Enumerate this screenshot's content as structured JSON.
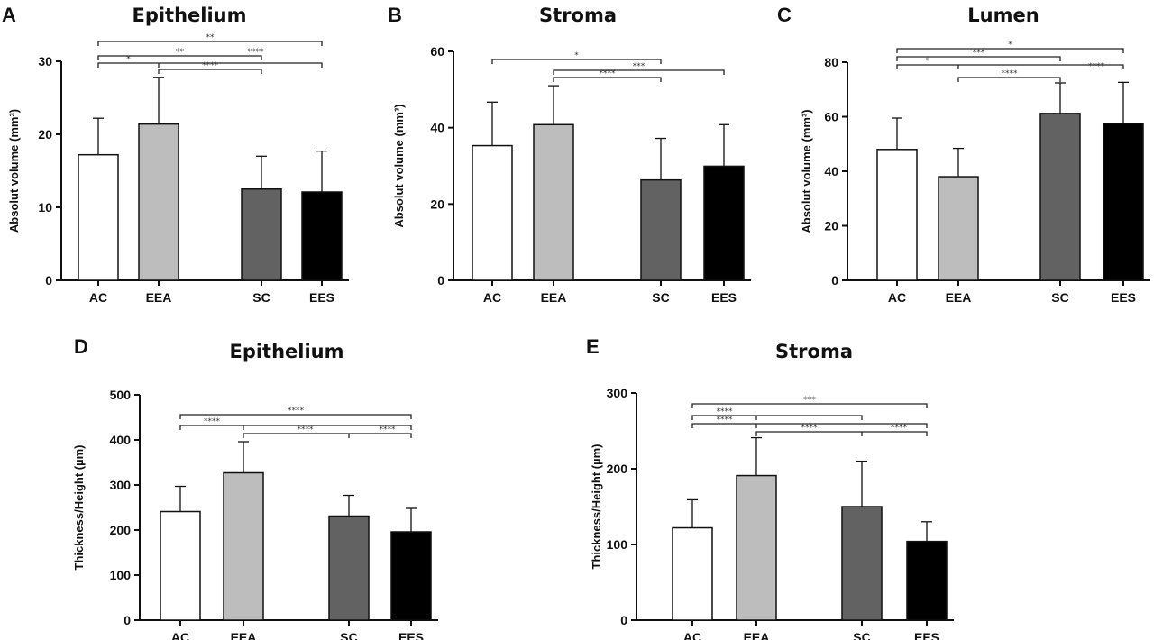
{
  "chart_data": [
    {
      "panel": "A",
      "type": "bar",
      "title": "Epithelium",
      "ylabel": "Absolut volume (mm³)",
      "ylim": [
        0,
        30
      ],
      "yticks": [
        0,
        10,
        20,
        30
      ],
      "categories": [
        "AC",
        "EEA",
        "SC",
        "EES"
      ],
      "values": [
        17.2,
        21.4,
        12.5,
        12.1
      ],
      "errors": [
        5.0,
        6.4,
        4.5,
        5.6
      ],
      "colors": [
        "#ffffff",
        "#bdbdbd",
        "#626262",
        "#000000"
      ],
      "significance": [
        {
          "from": 0,
          "to": 3,
          "label": "**"
        },
        {
          "from": 0,
          "to": 2,
          "label": "**"
        },
        {
          "from": 0,
          "to": 3,
          "label": "*"
        },
        {
          "from": 1,
          "to": 2,
          "label": "****"
        },
        {
          "from": 1,
          "to": 3,
          "label": "****"
        }
      ]
    },
    {
      "panel": "B",
      "type": "bar",
      "title": "Stroma",
      "ylabel": "Absolut volume (mm³)",
      "ylim": [
        0,
        60
      ],
      "yticks": [
        0,
        20,
        40,
        60
      ],
      "categories": [
        "AC",
        "EEA",
        "SC",
        "EES"
      ],
      "values": [
        35.3,
        40.8,
        26.3,
        29.9
      ],
      "errors": [
        11.4,
        10.2,
        10.9,
        10.9
      ],
      "colors": [
        "#ffffff",
        "#bdbdbd",
        "#626262",
        "#000000"
      ],
      "significance": [
        {
          "from": 0,
          "to": 2,
          "label": "*"
        },
        {
          "from": 1,
          "to": 3,
          "label": "***"
        },
        {
          "from": 1,
          "to": 2,
          "label": "****"
        }
      ]
    },
    {
      "panel": "C",
      "type": "bar",
      "title": "Lumen",
      "ylabel": "Absolut volume (mm³)",
      "ylim": [
        0,
        80
      ],
      "yticks": [
        0,
        20,
        40,
        60,
        80
      ],
      "categories": [
        "AC",
        "EEA",
        "SC",
        "EES"
      ],
      "values": [
        48.0,
        38.0,
        61.2,
        57.6
      ],
      "errors": [
        11.5,
        10.4,
        11.2,
        15.0
      ],
      "colors": [
        "#ffffff",
        "#bdbdbd",
        "#626262",
        "#000000"
      ],
      "significance": [
        {
          "from": 0,
          "to": 3,
          "label": "*"
        },
        {
          "from": 0,
          "to": 2,
          "label": "***"
        },
        {
          "from": 0,
          "to": 3,
          "label": "*"
        },
        {
          "from": 1,
          "to": 3,
          "label": "****"
        },
        {
          "from": 1,
          "to": 2,
          "label": "****"
        }
      ]
    },
    {
      "panel": "D",
      "type": "bar",
      "title": "Epithelium",
      "ylabel": "Thickness/Height (µm)",
      "ylim": [
        0,
        500
      ],
      "yticks": [
        0,
        100,
        200,
        300,
        400,
        500
      ],
      "categories": [
        "AC",
        "EEA",
        "SC",
        "EES"
      ],
      "values": [
        241,
        327,
        231,
        196
      ],
      "errors": [
        56,
        69,
        46,
        52
      ],
      "colors": [
        "#ffffff",
        "#bdbdbd",
        "#626262",
        "#000000"
      ],
      "significance": [
        {
          "from": 0,
          "to": 3,
          "label": "****"
        },
        {
          "from": 0,
          "to": 3,
          "label": "****"
        },
        {
          "from": 1,
          "to": 3,
          "label": "****"
        },
        {
          "from": 1,
          "to": 3,
          "label": "****"
        }
      ]
    },
    {
      "panel": "E",
      "type": "bar",
      "title": "Stroma",
      "ylabel": "Thickness/Height (µm)",
      "ylim": [
        0,
        300
      ],
      "yticks": [
        0,
        100,
        200,
        300
      ],
      "categories": [
        "AC",
        "EEA",
        "SC",
        "EES"
      ],
      "values": [
        122,
        191,
        150,
        104
      ],
      "errors": [
        37,
        50,
        60,
        26
      ],
      "colors": [
        "#ffffff",
        "#bdbdbd",
        "#626262",
        "#000000"
      ],
      "significance": [
        {
          "from": 0,
          "to": 3,
          "label": "***"
        },
        {
          "from": 0,
          "to": 2,
          "label": "****"
        },
        {
          "from": 0,
          "to": 3,
          "label": "****"
        },
        {
          "from": 1,
          "to": 3,
          "label": "****"
        },
        {
          "from": 1,
          "to": 3,
          "label": "****"
        }
      ]
    }
  ]
}
